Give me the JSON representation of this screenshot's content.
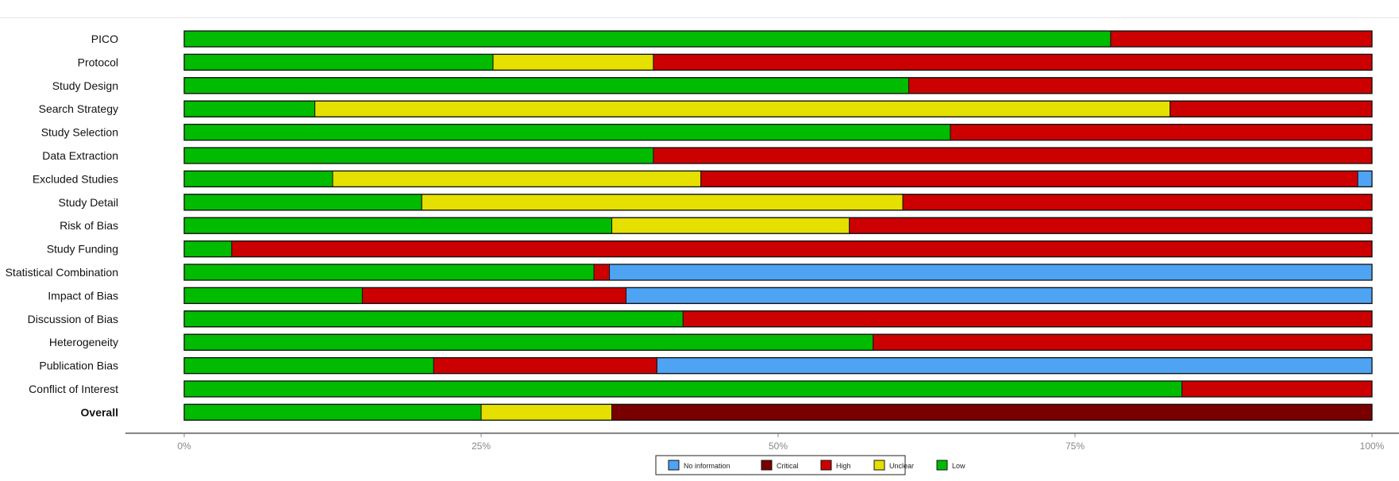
{
  "chart_data": {
    "type": "bar",
    "orientation": "horizontal",
    "stacked": true,
    "percent": true,
    "title": "",
    "xlabel": "",
    "ylabel": "",
    "xlim": [
      0,
      100
    ],
    "x_ticks": [
      "0%",
      "25%",
      "50%",
      "75%",
      "100%"
    ],
    "x_tick_values": [
      0,
      25,
      50,
      75,
      100
    ],
    "categories": [
      "PICO",
      "Protocol",
      "Study Design",
      "Search Strategy",
      "Study Selection",
      "Data Extraction",
      "Excluded Studies",
      "Study Detail",
      "Risk of Bias",
      "Study Funding",
      "Statistical Combination",
      "Impact of Bias",
      "Discussion of Bias",
      "Heterogeneity",
      "Publication Bias",
      "Conflict of Interest",
      "Overall"
    ],
    "bold_categories": [
      "Overall"
    ],
    "series": [
      {
        "name": "Low",
        "color": "#00bb00",
        "values": [
          78,
          26,
          61,
          11,
          64.5,
          39.5,
          12.5,
          20,
          36,
          4,
          34.5,
          15,
          42,
          58,
          21,
          84,
          25
        ]
      },
      {
        "name": "Unclear",
        "color": "#e5e000",
        "values": [
          0,
          13.5,
          0,
          72,
          0,
          0,
          31,
          40.5,
          20,
          0,
          0,
          0,
          0,
          0,
          0,
          0,
          11
        ]
      },
      {
        "name": "High",
        "color": "#cc0000",
        "values": [
          22,
          60.5,
          39,
          17,
          35.5,
          60.5,
          55.3,
          39.5,
          44,
          96,
          1.3,
          22.2,
          58,
          42,
          18.8,
          16,
          0
        ]
      },
      {
        "name": "Critical",
        "color": "#7a0000",
        "values": [
          0,
          0,
          0,
          0,
          0,
          0,
          0,
          0,
          0,
          0,
          0,
          0,
          0,
          0,
          0,
          0,
          64
        ]
      },
      {
        "name": "No information",
        "color": "#4ea3f3",
        "values": [
          0,
          0,
          0,
          0,
          0,
          0,
          1.2,
          0,
          0,
          0,
          64.2,
          62.8,
          0,
          0,
          60.2,
          0,
          0
        ]
      }
    ],
    "legend": {
      "position": "bottom",
      "order": [
        "No information",
        "Critical",
        "High",
        "Unclear",
        "Low"
      ]
    },
    "grid": false
  }
}
